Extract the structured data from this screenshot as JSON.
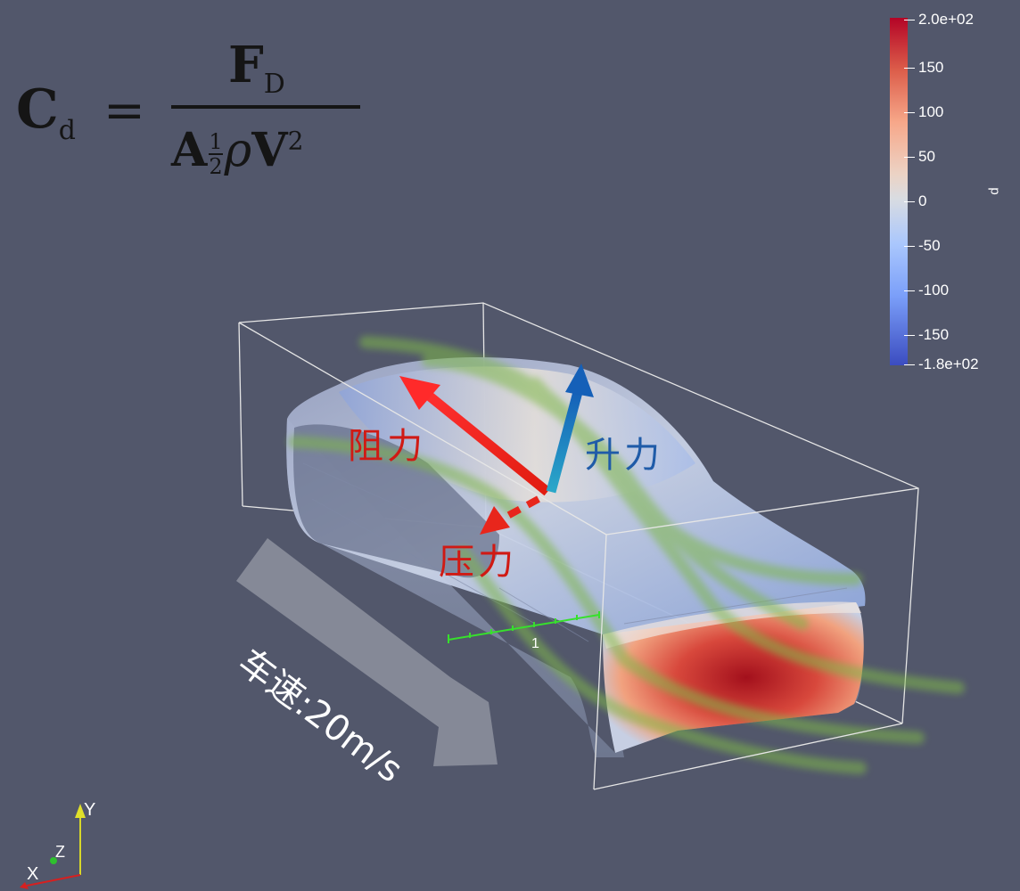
{
  "formula": {
    "lhs_symbol": "C",
    "lhs_subscript": "d",
    "equals": "=",
    "numerator_symbol": "F",
    "numerator_subscript": "D",
    "den_area": "A",
    "den_half_num": "1",
    "den_half_den": "2",
    "den_rho": "ρ",
    "den_velocity": "V",
    "den_exponent": "2"
  },
  "force_labels": {
    "drag": "阻力",
    "lift": "升力",
    "pressure": "压力"
  },
  "speed_label": "车速:20m/s",
  "ruler_label": "1",
  "colorbar": {
    "title": "p",
    "ticks": [
      "2.0e+02",
      "150",
      "100",
      "50",
      "0",
      "-50",
      "-100",
      "-150",
      "-1.8e+02"
    ],
    "max": 200,
    "min": -180,
    "colormap": "coolwarm"
  },
  "axes": {
    "x": "X",
    "y": "Y",
    "z": "Z"
  },
  "colors": {
    "background": "#52576b",
    "drag_arrow": "#e8261c",
    "lift_arrow": "#1e6fb8",
    "streamline": "#7fb84a",
    "bbox": "#e6e6e6"
  }
}
